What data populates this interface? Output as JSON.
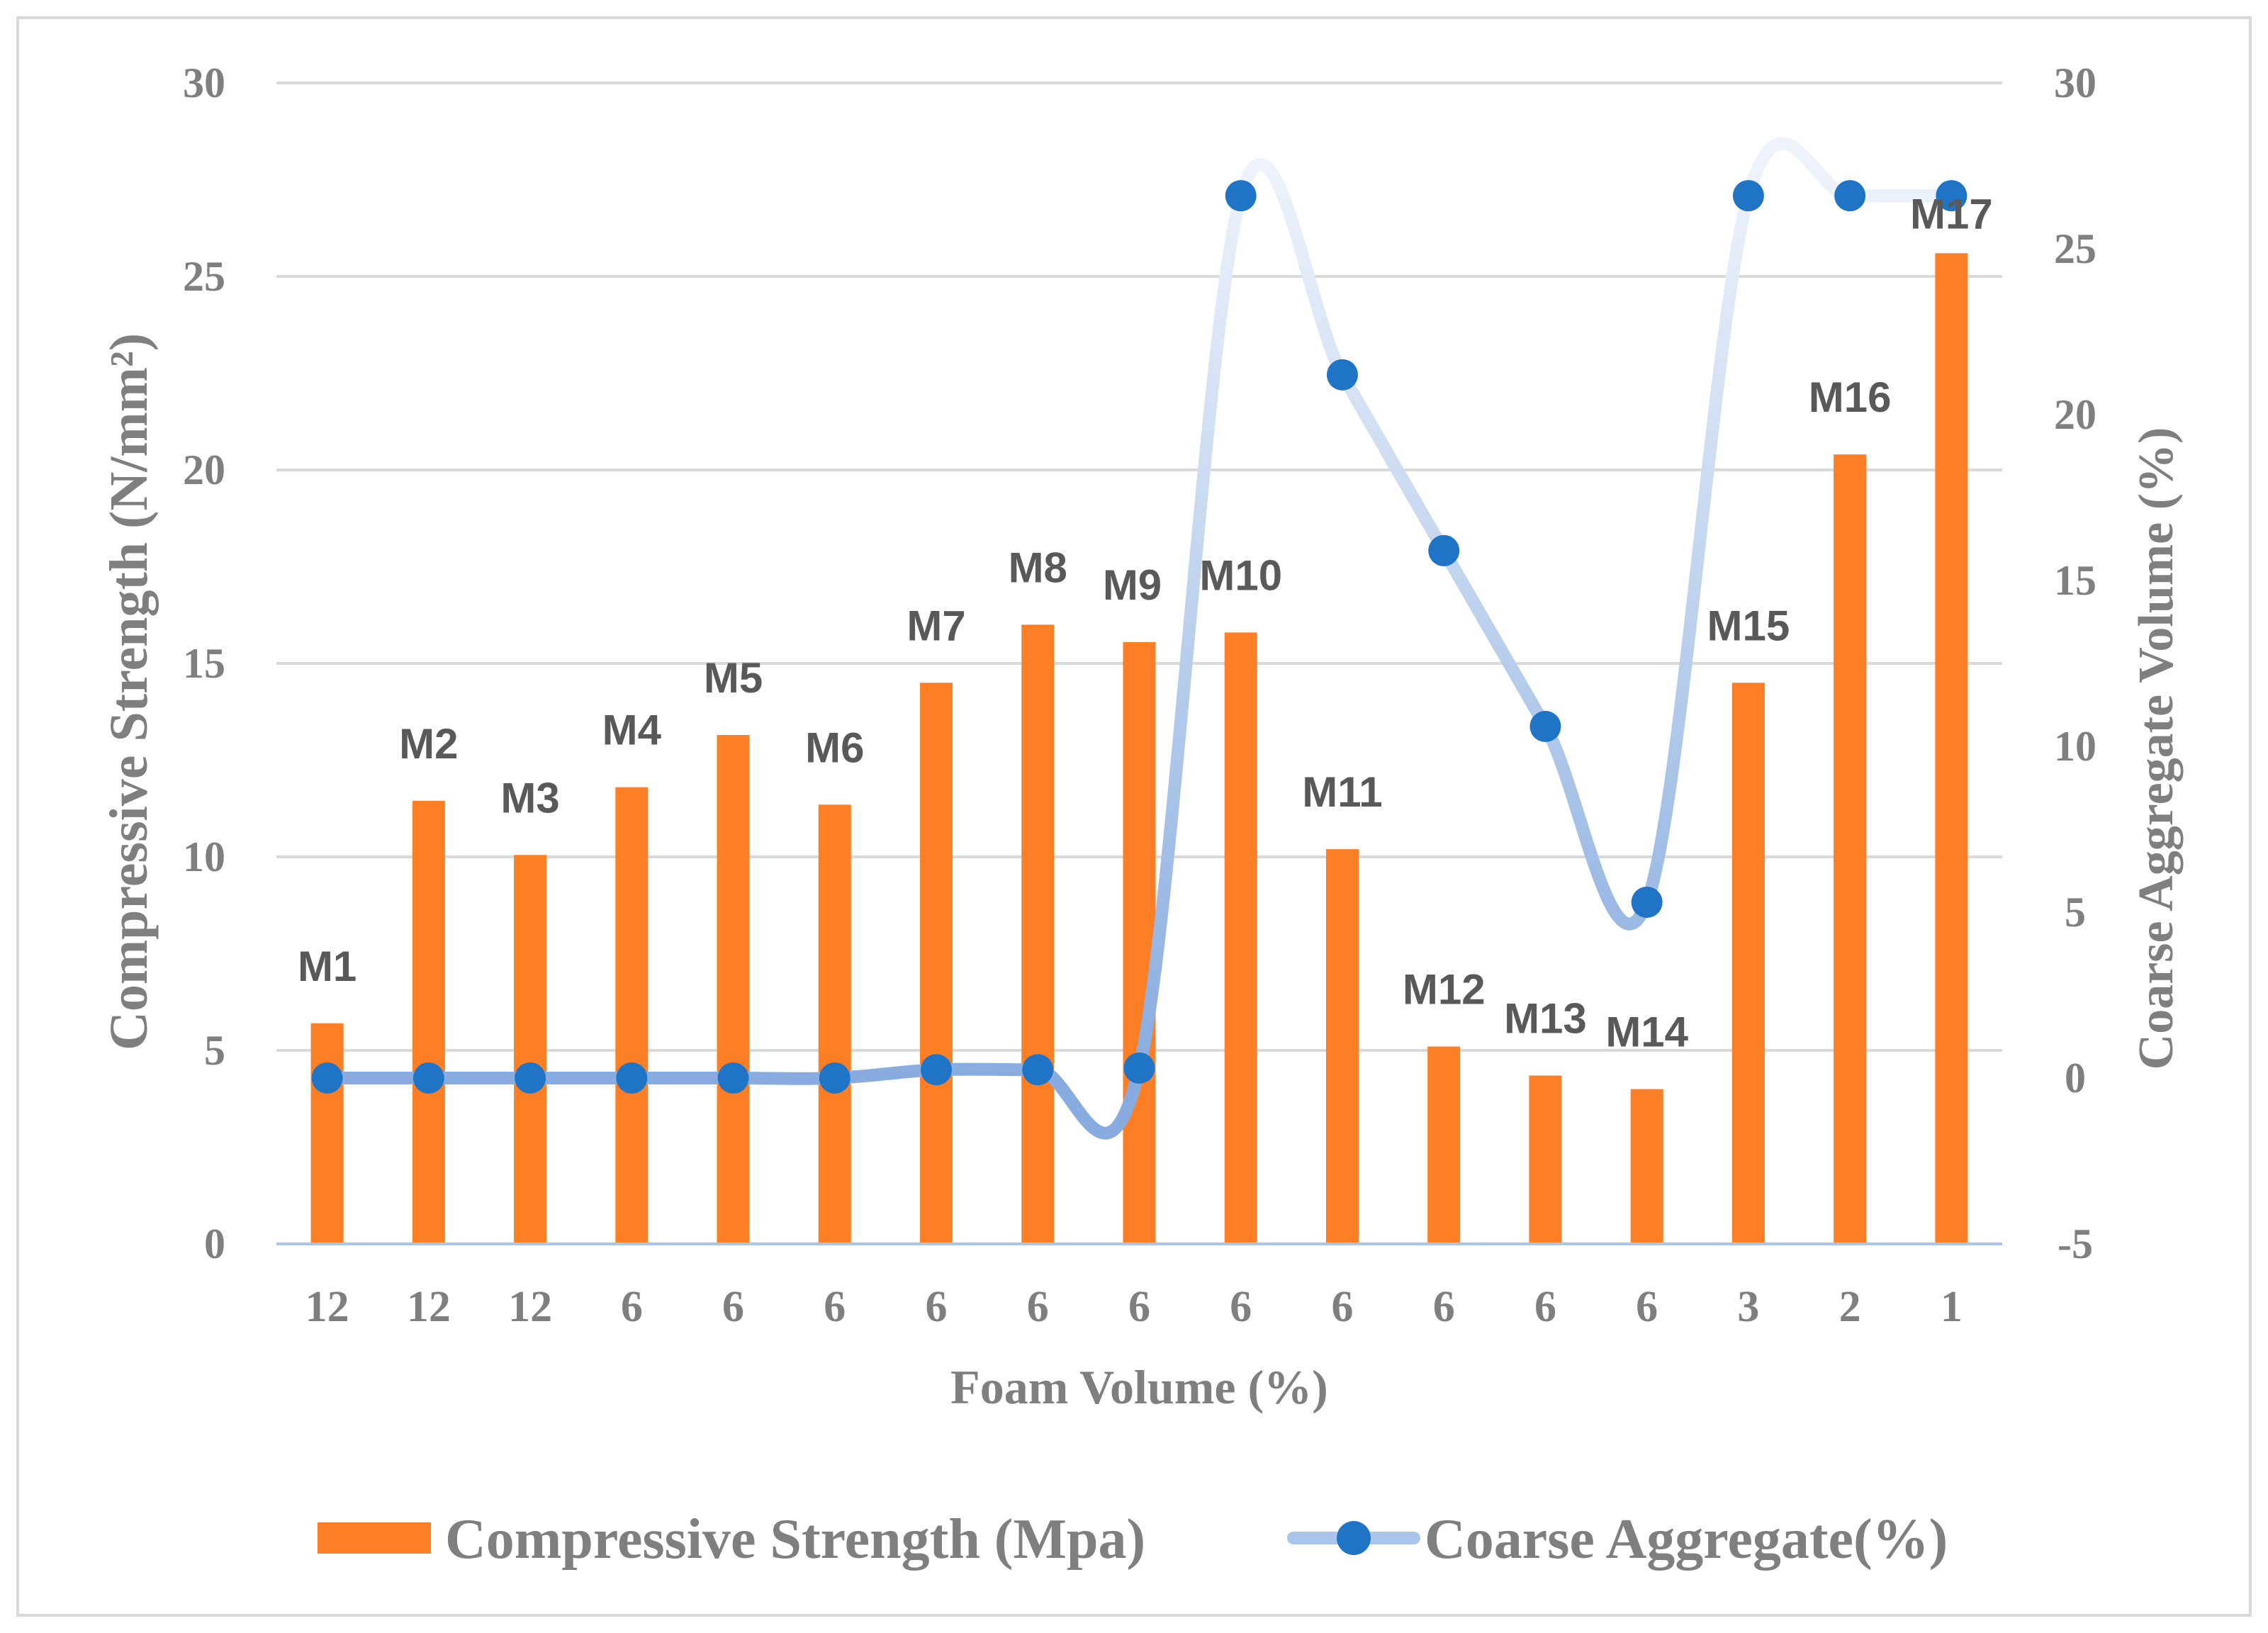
{
  "chart_data": {
    "type": "bar",
    "xlabel": "Foam Volume (%)",
    "ylabel": "Compressive Strength (N/mm²)",
    "y2label": "Coarse Aggregate Volume (%)",
    "ylim": [
      0,
      30
    ],
    "y2lim": [
      -5,
      30
    ],
    "yticks": [
      0,
      5,
      10,
      15,
      20,
      25,
      30
    ],
    "y2ticks": [
      -5,
      0,
      5,
      10,
      15,
      20,
      25,
      30
    ],
    "grid": true,
    "legend_position": "bottom",
    "categories": [
      "12",
      "12",
      "12",
      "6",
      "6",
      "6",
      "6",
      "6",
      "6",
      "6",
      "6",
      "6",
      "6",
      "6",
      "3",
      "2",
      "1"
    ],
    "bar_labels": [
      "M1",
      "M2",
      "M3",
      "M4",
      "M5",
      "M6",
      "M7",
      "M8",
      "M9",
      "M10",
      "M11",
      "M12",
      "M13",
      "M14",
      "M15",
      "M16",
      "M17"
    ],
    "series": [
      {
        "name": "Compressive Strength (Mpa)",
        "type": "bar",
        "axis": "left",
        "color": "#fd7f25",
        "values": [
          5.7,
          11.45,
          10.05,
          11.8,
          13.15,
          11.35,
          14.5,
          16.0,
          15.55,
          15.8,
          10.2,
          5.1,
          4.35,
          4.0,
          14.5,
          20.4,
          25.6
        ]
      },
      {
        "name": "Coarse Aggregate(%)",
        "type": "line",
        "axis": "right",
        "color": "#1f74c6",
        "line_color": "#a9c6ea",
        "values": [
          0,
          0,
          0,
          0,
          0,
          0,
          0.25,
          0.25,
          0.3,
          26.6,
          21.2,
          15.9,
          10.6,
          5.3,
          26.6,
          26.6,
          26.6
        ]
      }
    ]
  }
}
